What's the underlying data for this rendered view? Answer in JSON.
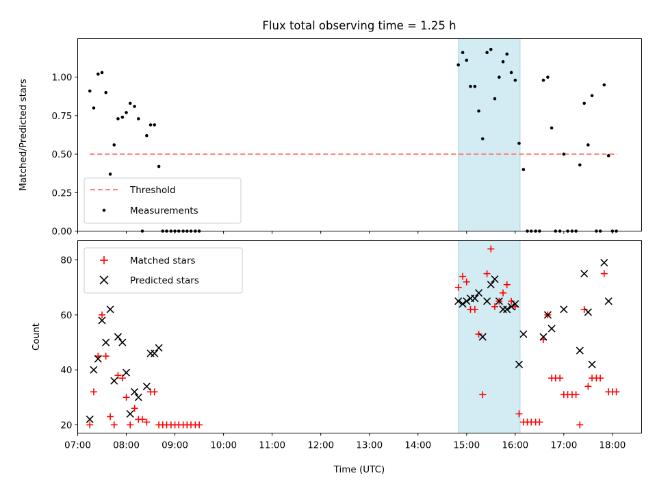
{
  "chart_data": [
    {
      "type": "scatter",
      "title": "Flux total observing time = 1.25 h",
      "xlabel": "",
      "ylabel": "Matched/Predicted stars",
      "xlim": [
        7.0,
        18.6
      ],
      "ylim": [
        0.0,
        1.25
      ],
      "yticks": [
        0.0,
        0.25,
        0.5,
        0.75,
        1.0
      ],
      "ytick_labels": [
        "0.00",
        "0.25",
        "0.50",
        "0.75",
        "1.00"
      ],
      "grid": false,
      "legend_position": "lower-left",
      "highlight_span": {
        "x0": 14.83,
        "x1": 16.1,
        "color": "#d3ebf2"
      },
      "threshold": {
        "name": "Threshold",
        "y": 0.5,
        "x0": 7.25,
        "x1": 18.1,
        "color": "#ff7f7f",
        "style": "dashed"
      },
      "series": [
        {
          "name": "Measurements",
          "marker": "dot",
          "color": "#000000",
          "points": [
            [
              7.25,
              0.91
            ],
            [
              7.33,
              0.8
            ],
            [
              7.42,
              1.02
            ],
            [
              7.5,
              1.03
            ],
            [
              7.58,
              0.9
            ],
            [
              7.67,
              0.37
            ],
            [
              7.75,
              0.56
            ],
            [
              7.83,
              0.73
            ],
            [
              7.92,
              0.74
            ],
            [
              8.0,
              0.77
            ],
            [
              8.08,
              0.83
            ],
            [
              8.17,
              0.81
            ],
            [
              8.25,
              0.73
            ],
            [
              8.33,
              0.0
            ],
            [
              8.42,
              0.62
            ],
            [
              8.5,
              0.69
            ],
            [
              8.58,
              0.69
            ],
            [
              8.67,
              0.42
            ],
            [
              8.75,
              0.0
            ],
            [
              8.83,
              0.0
            ],
            [
              8.92,
              0.0
            ],
            [
              9.0,
              0.0
            ],
            [
              9.08,
              0.0
            ],
            [
              9.17,
              0.0
            ],
            [
              9.25,
              0.0
            ],
            [
              9.33,
              0.0
            ],
            [
              9.42,
              0.0
            ],
            [
              9.5,
              0.0
            ],
            [
              14.83,
              1.08
            ],
            [
              14.92,
              1.16
            ],
            [
              15.0,
              1.11
            ],
            [
              15.08,
              0.94
            ],
            [
              15.17,
              0.94
            ],
            [
              15.25,
              0.78
            ],
            [
              15.33,
              0.6
            ],
            [
              15.42,
              1.16
            ],
            [
              15.5,
              1.18
            ],
            [
              15.58,
              0.86
            ],
            [
              15.67,
              1.0
            ],
            [
              15.75,
              1.1
            ],
            [
              15.83,
              1.15
            ],
            [
              15.92,
              1.03
            ],
            [
              16.0,
              0.98
            ],
            [
              16.08,
              0.57
            ],
            [
              16.17,
              0.4
            ],
            [
              16.25,
              0.0
            ],
            [
              16.33,
              0.0
            ],
            [
              16.42,
              0.0
            ],
            [
              16.5,
              0.0
            ],
            [
              16.58,
              0.98
            ],
            [
              16.67,
              1.0
            ],
            [
              16.75,
              0.67
            ],
            [
              16.83,
              0.0
            ],
            [
              16.92,
              0.0
            ],
            [
              17.0,
              0.5
            ],
            [
              17.08,
              0.0
            ],
            [
              17.17,
              0.0
            ],
            [
              17.25,
              0.0
            ],
            [
              17.33,
              0.43
            ],
            [
              17.42,
              0.83
            ],
            [
              17.5,
              0.56
            ],
            [
              17.58,
              0.88
            ],
            [
              17.67,
              0.0
            ],
            [
              17.75,
              0.0
            ],
            [
              17.83,
              0.95
            ],
            [
              17.92,
              0.49
            ],
            [
              18.0,
              0.0
            ],
            [
              18.08,
              0.0
            ]
          ]
        }
      ]
    },
    {
      "type": "scatter",
      "title": "",
      "xlabel": "Time (UTC)",
      "ylabel": "Count",
      "xlim": [
        7.0,
        18.6
      ],
      "ylim": [
        17,
        87
      ],
      "yticks": [
        20,
        40,
        60,
        80
      ],
      "ytick_labels": [
        "20",
        "40",
        "60",
        "80"
      ],
      "xticks": [
        7,
        8,
        9,
        10,
        11,
        12,
        13,
        14,
        15,
        16,
        17,
        18
      ],
      "xtick_labels": [
        "07:00",
        "08:00",
        "09:00",
        "10:00",
        "11:00",
        "12:00",
        "13:00",
        "14:00",
        "15:00",
        "16:00",
        "17:00",
        "18:00"
      ],
      "grid": false,
      "legend_position": "upper-left",
      "highlight_span": {
        "x0": 14.83,
        "x1": 16.1,
        "color": "#d3ebf2"
      },
      "series": [
        {
          "name": "Matched stars",
          "marker": "plus",
          "color": "#ff0000",
          "points": [
            [
              7.25,
              20
            ],
            [
              7.33,
              32
            ],
            [
              7.42,
              45
            ],
            [
              7.5,
              60
            ],
            [
              7.58,
              45
            ],
            [
              7.67,
              23
            ],
            [
              7.75,
              20
            ],
            [
              7.83,
              38
            ],
            [
              7.92,
              37
            ],
            [
              8.0,
              30
            ],
            [
              8.08,
              20
            ],
            [
              8.17,
              26
            ],
            [
              8.25,
              22
            ],
            [
              8.33,
              22
            ],
            [
              8.42,
              21
            ],
            [
              8.5,
              32
            ],
            [
              8.58,
              32
            ],
            [
              8.67,
              20
            ],
            [
              8.75,
              20
            ],
            [
              8.83,
              20
            ],
            [
              8.92,
              20
            ],
            [
              9.0,
              20
            ],
            [
              9.08,
              20
            ],
            [
              9.17,
              20
            ],
            [
              9.25,
              20
            ],
            [
              9.33,
              20
            ],
            [
              9.42,
              20
            ],
            [
              9.5,
              20
            ],
            [
              14.83,
              70
            ],
            [
              14.92,
              74
            ],
            [
              15.0,
              72
            ],
            [
              15.08,
              62
            ],
            [
              15.17,
              62
            ],
            [
              15.25,
              53
            ],
            [
              15.33,
              31
            ],
            [
              15.42,
              75
            ],
            [
              15.5,
              84
            ],
            [
              15.58,
              63
            ],
            [
              15.67,
              65
            ],
            [
              15.75,
              68
            ],
            [
              15.83,
              71
            ],
            [
              15.92,
              65
            ],
            [
              16.0,
              63
            ],
            [
              16.08,
              24
            ],
            [
              16.17,
              21
            ],
            [
              16.25,
              21
            ],
            [
              16.33,
              21
            ],
            [
              16.42,
              21
            ],
            [
              16.5,
              21
            ],
            [
              16.58,
              51
            ],
            [
              16.67,
              60
            ],
            [
              16.75,
              37
            ],
            [
              16.83,
              37
            ],
            [
              16.92,
              37
            ],
            [
              17.0,
              31
            ],
            [
              17.08,
              31
            ],
            [
              17.17,
              31
            ],
            [
              17.25,
              31
            ],
            [
              17.33,
              20
            ],
            [
              17.42,
              62
            ],
            [
              17.5,
              34
            ],
            [
              17.58,
              37
            ],
            [
              17.67,
              37
            ],
            [
              17.75,
              37
            ],
            [
              17.83,
              75
            ],
            [
              17.92,
              32
            ],
            [
              18.0,
              32
            ],
            [
              18.08,
              32
            ]
          ]
        },
        {
          "name": "Predicted stars",
          "marker": "x",
          "color": "#000000",
          "points": [
            [
              7.25,
              22
            ],
            [
              7.33,
              40
            ],
            [
              7.42,
              44
            ],
            [
              7.5,
              58
            ],
            [
              7.58,
              50
            ],
            [
              7.67,
              62
            ],
            [
              7.75,
              36
            ],
            [
              7.83,
              52
            ],
            [
              7.92,
              50
            ],
            [
              8.0,
              39
            ],
            [
              8.08,
              24
            ],
            [
              8.17,
              32
            ],
            [
              8.25,
              30
            ],
            [
              8.42,
              34
            ],
            [
              8.5,
              46
            ],
            [
              8.58,
              46
            ],
            [
              8.67,
              48
            ],
            [
              14.83,
              65
            ],
            [
              14.92,
              64
            ],
            [
              15.0,
              65
            ],
            [
              15.08,
              66
            ],
            [
              15.17,
              66
            ],
            [
              15.25,
              68
            ],
            [
              15.33,
              52
            ],
            [
              15.42,
              65
            ],
            [
              15.5,
              71
            ],
            [
              15.58,
              73
            ],
            [
              15.67,
              65
            ],
            [
              15.75,
              62
            ],
            [
              15.83,
              62
            ],
            [
              15.92,
              63
            ],
            [
              16.0,
              64
            ],
            [
              16.08,
              42
            ],
            [
              16.17,
              53
            ],
            [
              16.58,
              52
            ],
            [
              16.67,
              60
            ],
            [
              16.75,
              55
            ],
            [
              17.0,
              62
            ],
            [
              17.33,
              47
            ],
            [
              17.42,
              75
            ],
            [
              17.5,
              61
            ],
            [
              17.58,
              42
            ],
            [
              17.83,
              79
            ],
            [
              17.92,
              65
            ]
          ]
        }
      ]
    }
  ]
}
